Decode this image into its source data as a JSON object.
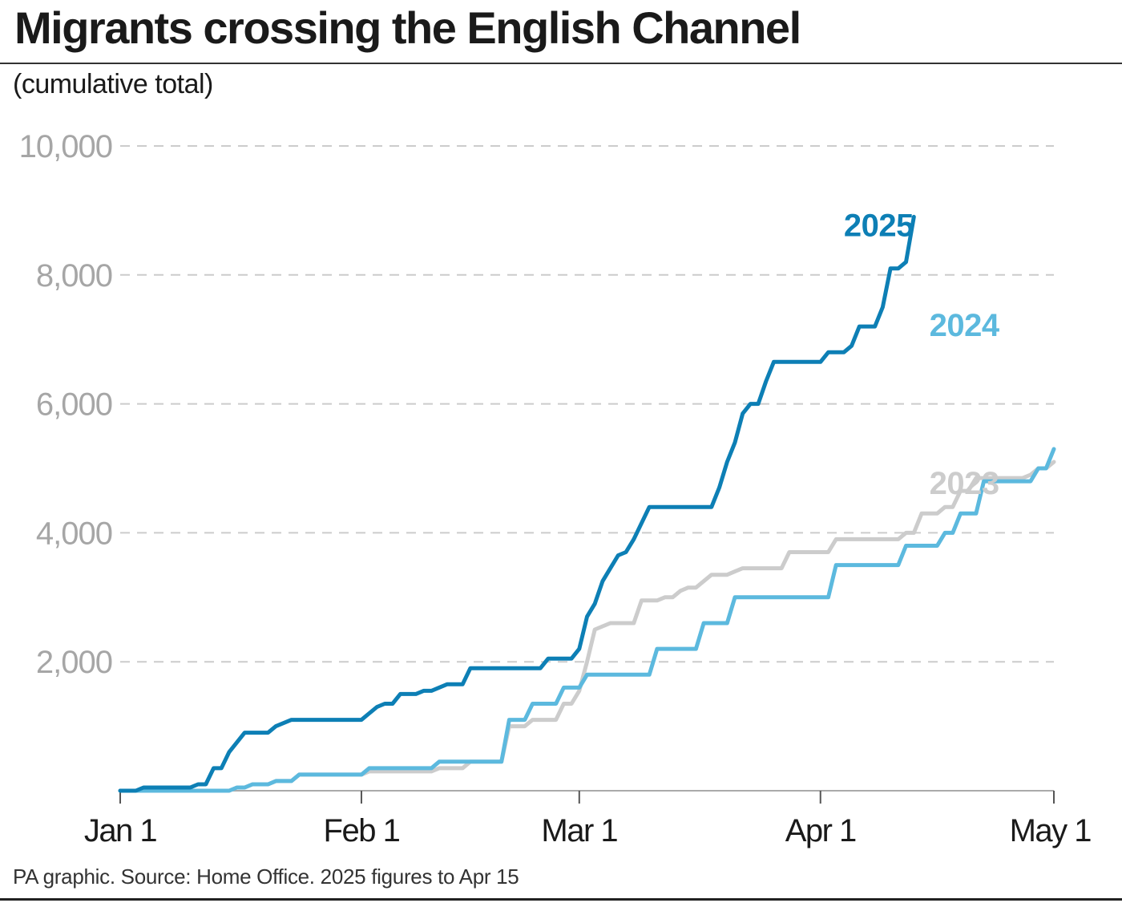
{
  "header": {
    "title": "Migrants crossing the English Channel",
    "subtitle": "(cumulative total)"
  },
  "footer": {
    "source": "PA graphic. Source: Home Office. 2025 figures to Apr 15"
  },
  "colors": {
    "s2025": "#0d7fb5",
    "s2024": "#5cb9de",
    "s2023": "#cccccc",
    "grid": "#cccccc",
    "axis": "#aaaaaa"
  },
  "chart_data": {
    "type": "line",
    "title": "Migrants crossing the English Channel",
    "subtitle": "(cumulative total)",
    "xlabel": "",
    "ylabel": "",
    "xlim": [
      0,
      120
    ],
    "ylim": [
      0,
      10000
    ],
    "grid": true,
    "yticks": [
      {
        "value": 2000,
        "label": "2,000"
      },
      {
        "value": 4000,
        "label": "4,000"
      },
      {
        "value": 6000,
        "label": "6,000"
      },
      {
        "value": 8000,
        "label": "8,000"
      },
      {
        "value": 10000,
        "label": "10,000"
      }
    ],
    "xticks": [
      {
        "value": 0,
        "label": "Jan 1"
      },
      {
        "value": 31,
        "label": "Feb 1"
      },
      {
        "value": 59,
        "label": "Mar 1"
      },
      {
        "value": 90,
        "label": "Apr 1"
      },
      {
        "value": 120,
        "label": "May 1"
      }
    ],
    "series": [
      {
        "name": "2023",
        "label": "2023",
        "color": "#cccccc",
        "label_anchor": {
          "x": 104,
          "y": 4600
        },
        "points": [
          [
            0,
            0
          ],
          [
            2,
            0
          ],
          [
            4,
            0
          ],
          [
            6,
            0
          ],
          [
            8,
            0
          ],
          [
            10,
            0
          ],
          [
            12,
            0
          ],
          [
            13,
            0
          ],
          [
            14,
            0
          ],
          [
            15,
            50
          ],
          [
            16,
            50
          ],
          [
            17,
            100
          ],
          [
            18,
            100
          ],
          [
            19,
            100
          ],
          [
            20,
            150
          ],
          [
            21,
            150
          ],
          [
            22,
            150
          ],
          [
            23,
            250
          ],
          [
            24,
            250
          ],
          [
            25,
            250
          ],
          [
            26,
            250
          ],
          [
            27,
            250
          ],
          [
            28,
            250
          ],
          [
            29,
            250
          ],
          [
            30,
            250
          ],
          [
            31,
            250
          ],
          [
            32,
            300
          ],
          [
            33,
            300
          ],
          [
            34,
            300
          ],
          [
            35,
            300
          ],
          [
            36,
            300
          ],
          [
            37,
            300
          ],
          [
            38,
            300
          ],
          [
            39,
            300
          ],
          [
            40,
            300
          ],
          [
            41,
            350
          ],
          [
            42,
            350
          ],
          [
            43,
            350
          ],
          [
            44,
            350
          ],
          [
            45,
            450
          ],
          [
            46,
            450
          ],
          [
            47,
            450
          ],
          [
            48,
            450
          ],
          [
            49,
            450
          ],
          [
            50,
            1000
          ],
          [
            51,
            1000
          ],
          [
            52,
            1000
          ],
          [
            53,
            1100
          ],
          [
            54,
            1100
          ],
          [
            55,
            1100
          ],
          [
            56,
            1100
          ],
          [
            57,
            1350
          ],
          [
            58,
            1350
          ],
          [
            59,
            1550
          ],
          [
            60,
            2000
          ],
          [
            61,
            2500
          ],
          [
            62,
            2550
          ],
          [
            63,
            2600
          ],
          [
            64,
            2600
          ],
          [
            65,
            2600
          ],
          [
            66,
            2600
          ],
          [
            67,
            2950
          ],
          [
            68,
            2950
          ],
          [
            69,
            2950
          ],
          [
            70,
            3000
          ],
          [
            71,
            3000
          ],
          [
            72,
            3100
          ],
          [
            73,
            3150
          ],
          [
            74,
            3150
          ],
          [
            75,
            3250
          ],
          [
            76,
            3350
          ],
          [
            77,
            3350
          ],
          [
            78,
            3350
          ],
          [
            79,
            3400
          ],
          [
            80,
            3450
          ],
          [
            81,
            3450
          ],
          [
            82,
            3450
          ],
          [
            83,
            3450
          ],
          [
            84,
            3450
          ],
          [
            85,
            3450
          ],
          [
            86,
            3700
          ],
          [
            87,
            3700
          ],
          [
            88,
            3700
          ],
          [
            89,
            3700
          ],
          [
            90,
            3700
          ],
          [
            91,
            3700
          ],
          [
            92,
            3900
          ],
          [
            93,
            3900
          ],
          [
            94,
            3900
          ],
          [
            95,
            3900
          ],
          [
            96,
            3900
          ],
          [
            97,
            3900
          ],
          [
            98,
            3900
          ],
          [
            99,
            3900
          ],
          [
            100,
            3900
          ],
          [
            101,
            4000
          ],
          [
            102,
            4000
          ],
          [
            103,
            4300
          ],
          [
            104,
            4300
          ],
          [
            105,
            4300
          ],
          [
            106,
            4400
          ],
          [
            107,
            4400
          ],
          [
            108,
            4650
          ],
          [
            109,
            4650
          ],
          [
            110,
            4850
          ],
          [
            111,
            4850
          ],
          [
            112,
            4850
          ],
          [
            113,
            4850
          ],
          [
            114,
            4850
          ],
          [
            115,
            4850
          ],
          [
            116,
            4850
          ],
          [
            117,
            4900
          ],
          [
            118,
            5000
          ],
          [
            119,
            5000
          ],
          [
            120,
            5100
          ]
        ]
      },
      {
        "name": "2024",
        "label": "2024",
        "color": "#5cb9de",
        "label_anchor": {
          "x": 104,
          "y": 7050
        },
        "points": [
          [
            0,
            0
          ],
          [
            2,
            0
          ],
          [
            4,
            0
          ],
          [
            6,
            0
          ],
          [
            8,
            0
          ],
          [
            10,
            0
          ],
          [
            12,
            0
          ],
          [
            13,
            0
          ],
          [
            14,
            0
          ],
          [
            15,
            50
          ],
          [
            16,
            50
          ],
          [
            17,
            100
          ],
          [
            18,
            100
          ],
          [
            19,
            100
          ],
          [
            20,
            150
          ],
          [
            21,
            150
          ],
          [
            22,
            150
          ],
          [
            23,
            250
          ],
          [
            24,
            250
          ],
          [
            25,
            250
          ],
          [
            26,
            250
          ],
          [
            27,
            250
          ],
          [
            28,
            250
          ],
          [
            29,
            250
          ],
          [
            30,
            250
          ],
          [
            31,
            250
          ],
          [
            32,
            350
          ],
          [
            33,
            350
          ],
          [
            34,
            350
          ],
          [
            35,
            350
          ],
          [
            36,
            350
          ],
          [
            37,
            350
          ],
          [
            38,
            350
          ],
          [
            39,
            350
          ],
          [
            40,
            350
          ],
          [
            41,
            450
          ],
          [
            42,
            450
          ],
          [
            43,
            450
          ],
          [
            44,
            450
          ],
          [
            45,
            450
          ],
          [
            46,
            450
          ],
          [
            47,
            450
          ],
          [
            48,
            450
          ],
          [
            49,
            450
          ],
          [
            50,
            1100
          ],
          [
            51,
            1100
          ],
          [
            52,
            1100
          ],
          [
            53,
            1350
          ],
          [
            54,
            1350
          ],
          [
            55,
            1350
          ],
          [
            56,
            1350
          ],
          [
            57,
            1600
          ],
          [
            58,
            1600
          ],
          [
            59,
            1600
          ],
          [
            60,
            1800
          ],
          [
            61,
            1800
          ],
          [
            62,
            1800
          ],
          [
            63,
            1800
          ],
          [
            64,
            1800
          ],
          [
            65,
            1800
          ],
          [
            66,
            1800
          ],
          [
            67,
            1800
          ],
          [
            68,
            1800
          ],
          [
            69,
            2200
          ],
          [
            70,
            2200
          ],
          [
            71,
            2200
          ],
          [
            72,
            2200
          ],
          [
            73,
            2200
          ],
          [
            74,
            2200
          ],
          [
            75,
            2600
          ],
          [
            76,
            2600
          ],
          [
            77,
            2600
          ],
          [
            78,
            2600
          ],
          [
            79,
            3000
          ],
          [
            80,
            3000
          ],
          [
            81,
            3000
          ],
          [
            82,
            3000
          ],
          [
            83,
            3000
          ],
          [
            84,
            3000
          ],
          [
            85,
            3000
          ],
          [
            86,
            3000
          ],
          [
            87,
            3000
          ],
          [
            88,
            3000
          ],
          [
            89,
            3000
          ],
          [
            90,
            3000
          ],
          [
            91,
            3000
          ],
          [
            92,
            3500
          ],
          [
            93,
            3500
          ],
          [
            94,
            3500
          ],
          [
            95,
            3500
          ],
          [
            96,
            3500
          ],
          [
            97,
            3500
          ],
          [
            98,
            3500
          ],
          [
            99,
            3500
          ],
          [
            100,
            3500
          ],
          [
            101,
            3800
          ],
          [
            102,
            3800
          ],
          [
            103,
            3800
          ],
          [
            104,
            3800
          ],
          [
            105,
            3800
          ],
          [
            106,
            4000
          ],
          [
            107,
            4000
          ],
          [
            108,
            4300
          ],
          [
            109,
            4300
          ],
          [
            110,
            4300
          ],
          [
            111,
            4800
          ],
          [
            112,
            4800
          ],
          [
            113,
            4800
          ],
          [
            114,
            4800
          ],
          [
            115,
            4800
          ],
          [
            116,
            4800
          ],
          [
            117,
            4800
          ],
          [
            118,
            5000
          ],
          [
            119,
            5000
          ],
          [
            120,
            5300
          ]
        ]
      },
      {
        "name": "2025",
        "label": "2025",
        "color": "#0d7fb5",
        "label_anchor": {
          "x": 93,
          "y": 8600
        },
        "points": [
          [
            0,
            0
          ],
          [
            2,
            0
          ],
          [
            3,
            50
          ],
          [
            5,
            50
          ],
          [
            8,
            50
          ],
          [
            9,
            50
          ],
          [
            10,
            100
          ],
          [
            11,
            100
          ],
          [
            12,
            350
          ],
          [
            13,
            350
          ],
          [
            14,
            600
          ],
          [
            15,
            750
          ],
          [
            16,
            900
          ],
          [
            18,
            900
          ],
          [
            19,
            900
          ],
          [
            20,
            1000
          ],
          [
            21,
            1050
          ],
          [
            22,
            1100
          ],
          [
            25,
            1100
          ],
          [
            27,
            1100
          ],
          [
            29,
            1100
          ],
          [
            30,
            1100
          ],
          [
            31,
            1100
          ],
          [
            32,
            1200
          ],
          [
            33,
            1300
          ],
          [
            34,
            1350
          ],
          [
            35,
            1350
          ],
          [
            36,
            1500
          ],
          [
            38,
            1500
          ],
          [
            39,
            1550
          ],
          [
            40,
            1550
          ],
          [
            42,
            1650
          ],
          [
            44,
            1650
          ],
          [
            45,
            1900
          ],
          [
            47,
            1900
          ],
          [
            49,
            1900
          ],
          [
            51,
            1900
          ],
          [
            54,
            1900
          ],
          [
            55,
            2050
          ],
          [
            58,
            2050
          ],
          [
            59,
            2200
          ],
          [
            60,
            2700
          ],
          [
            61,
            2900
          ],
          [
            62,
            3250
          ],
          [
            63,
            3450
          ],
          [
            64,
            3650
          ],
          [
            65,
            3700
          ],
          [
            66,
            3900
          ],
          [
            67,
            4150
          ],
          [
            68,
            4400
          ],
          [
            70,
            4400
          ],
          [
            72,
            4400
          ],
          [
            74,
            4400
          ],
          [
            75,
            4400
          ],
          [
            76,
            4400
          ],
          [
            77,
            4700
          ],
          [
            78,
            5100
          ],
          [
            79,
            5400
          ],
          [
            80,
            5850
          ],
          [
            81,
            6000
          ],
          [
            82,
            6000
          ],
          [
            83,
            6350
          ],
          [
            84,
            6650
          ],
          [
            86,
            6650
          ],
          [
            88,
            6650
          ],
          [
            90,
            6650
          ],
          [
            91,
            6800
          ],
          [
            93,
            6800
          ],
          [
            94,
            6900
          ],
          [
            95,
            7200
          ],
          [
            97,
            7200
          ],
          [
            98,
            7500
          ],
          [
            99,
            8100
          ],
          [
            100,
            8100
          ],
          [
            101,
            8200
          ],
          [
            102,
            8900
          ]
        ]
      }
    ]
  }
}
